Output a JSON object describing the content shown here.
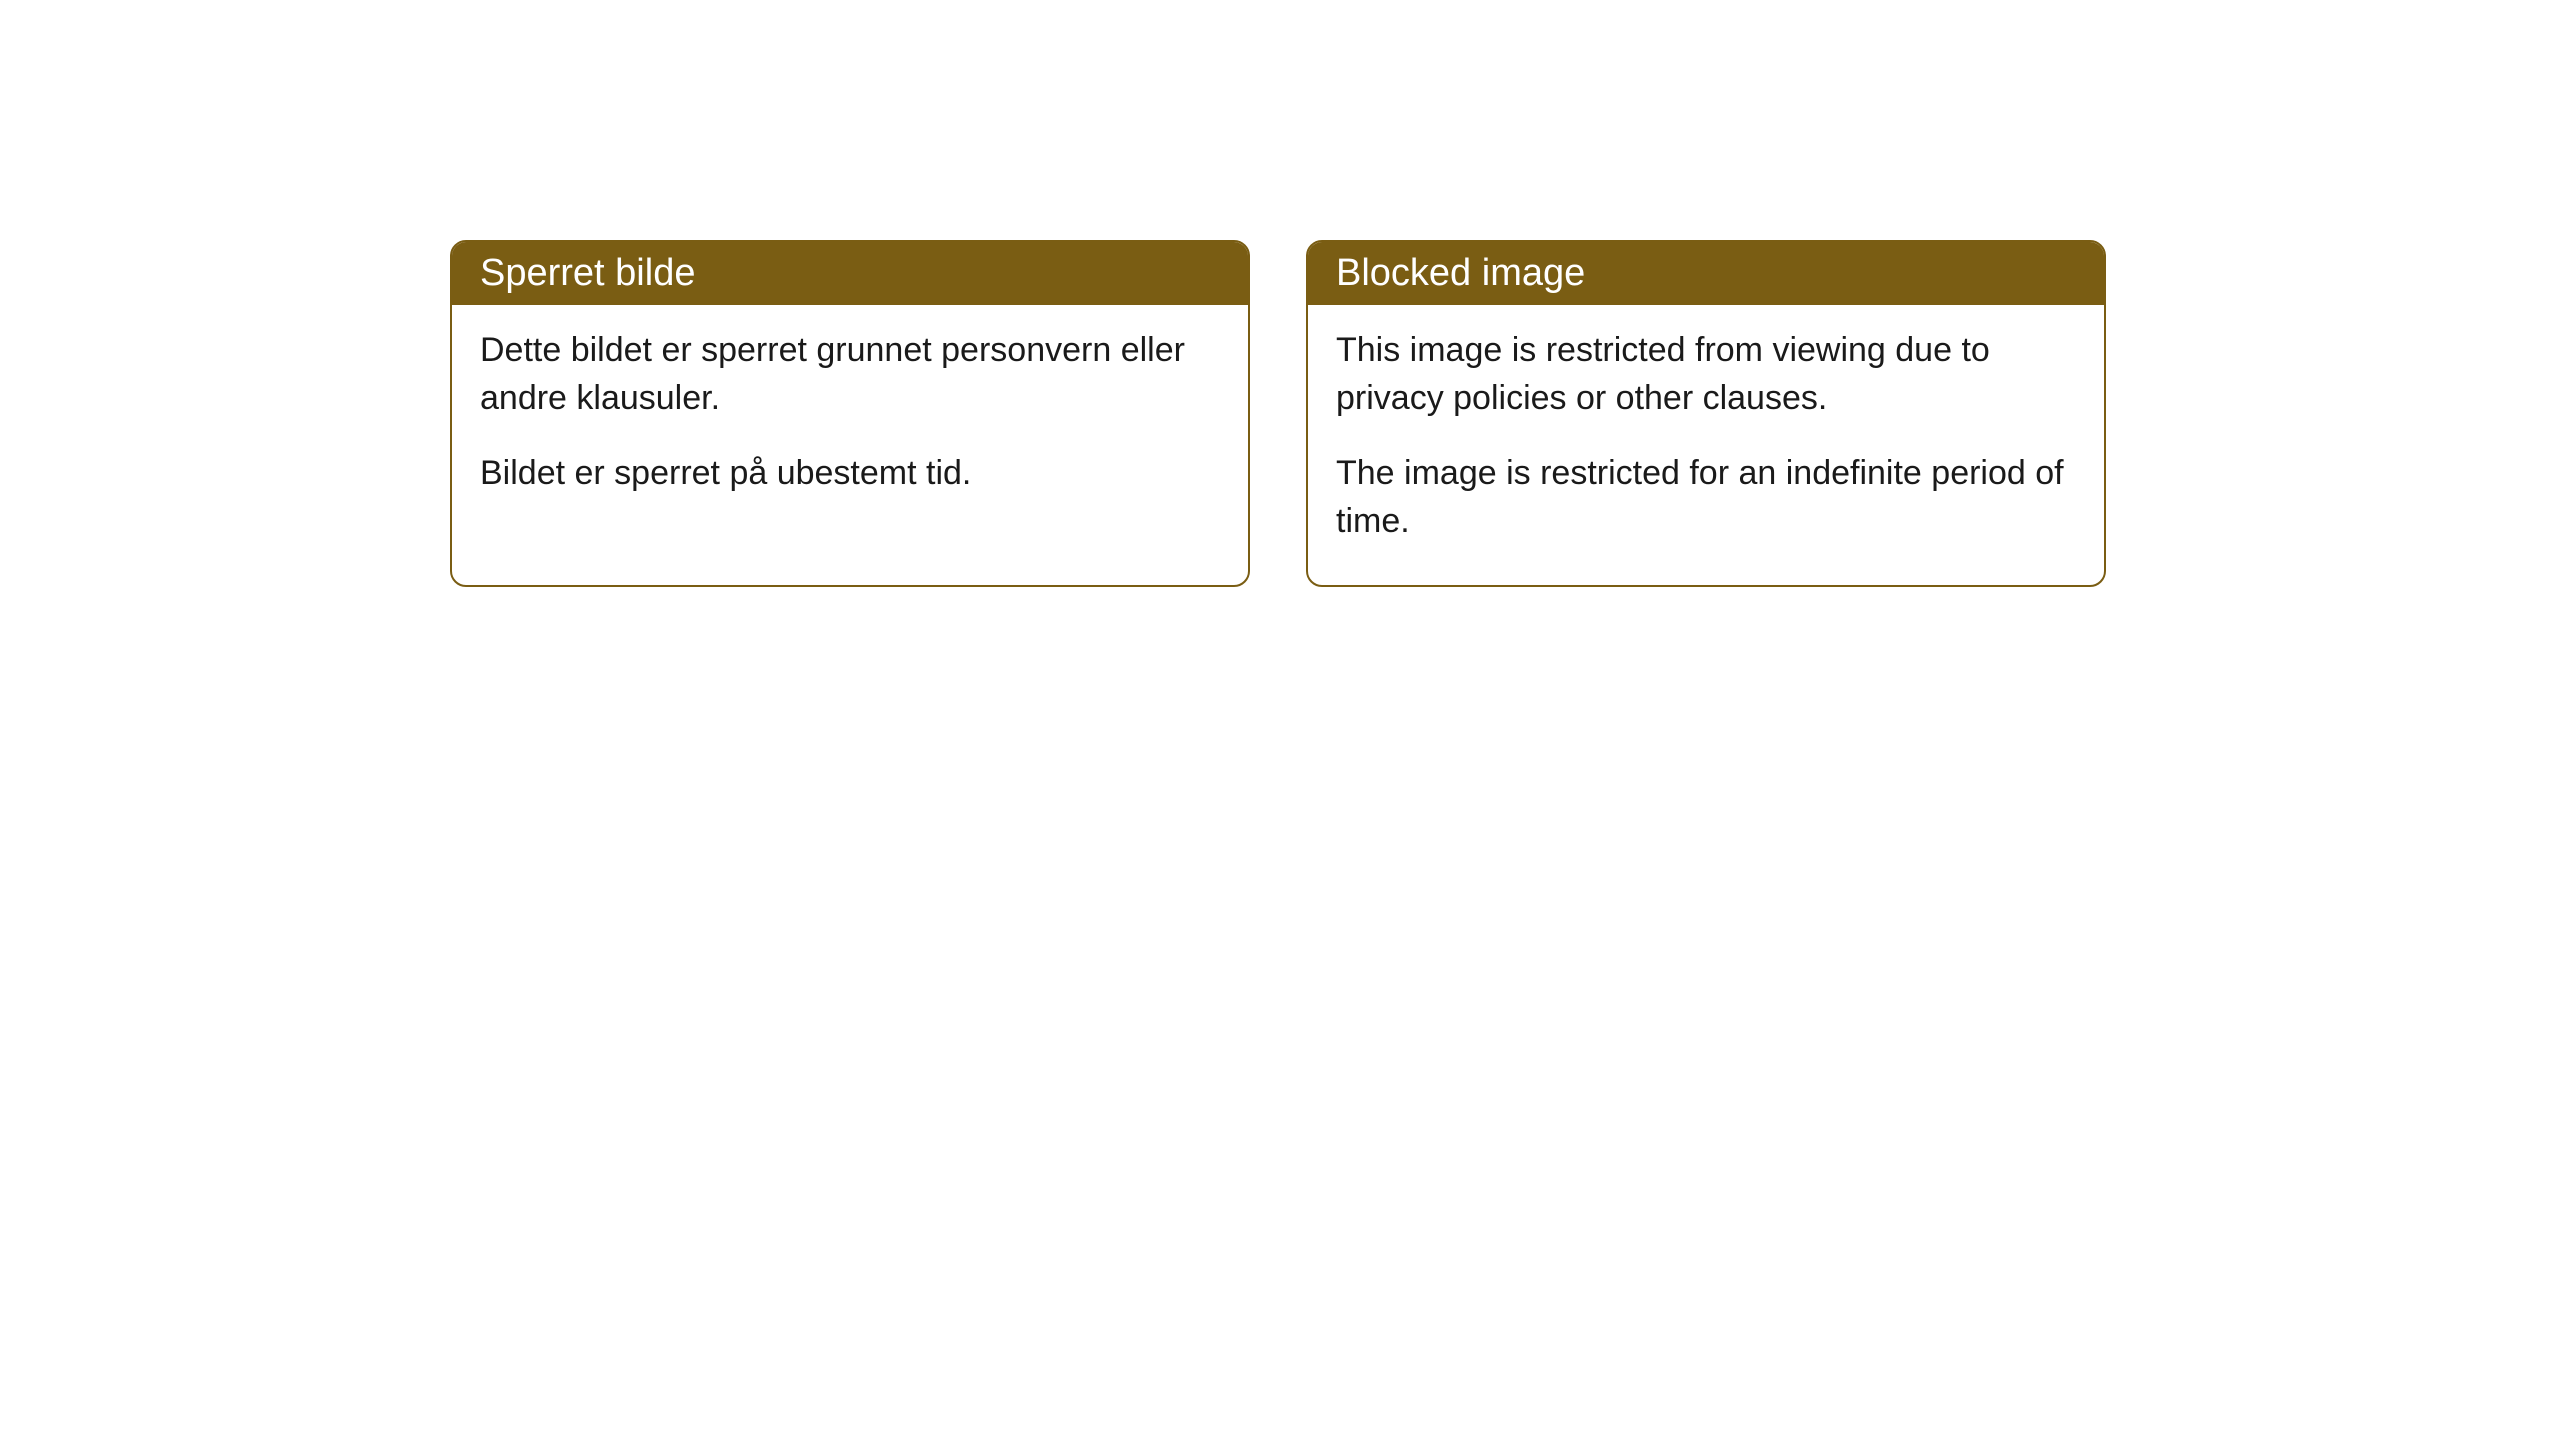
{
  "cards": [
    {
      "title": "Sperret bilde",
      "paragraph1": "Dette bildet er sperret grunnet personvern eller andre klausuler.",
      "paragraph2": "Bildet er sperret på ubestemt tid."
    },
    {
      "title": "Blocked image",
      "paragraph1": "This image is restricted from viewing due to privacy policies or other clauses.",
      "paragraph2": "The image is restricted for an indefinite period of time."
    }
  ],
  "styling": {
    "header_background_color": "#7a5d13",
    "header_text_color": "#ffffff",
    "border_color": "#7a5d13",
    "body_background_color": "#ffffff",
    "body_text_color": "#1a1a1a",
    "border_radius": 16,
    "header_fontsize": 38,
    "body_fontsize": 34
  }
}
